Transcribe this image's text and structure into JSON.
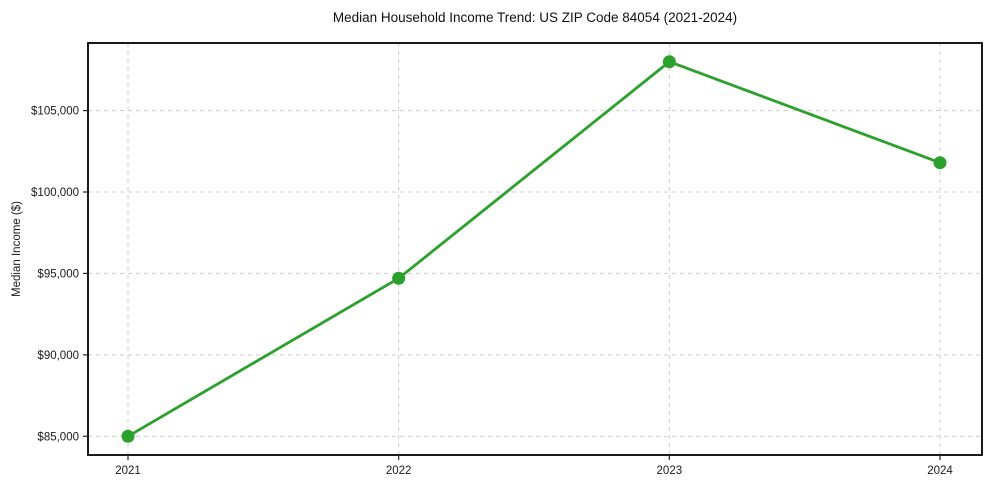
{
  "chart_data": {
    "type": "line",
    "title": "Median Household Income Trend: US ZIP Code 84054 (2021-2024)",
    "xlabel": "",
    "ylabel": "Median Income ($)",
    "categories": [
      "2021",
      "2022",
      "2023",
      "2024"
    ],
    "values": [
      85000,
      94700,
      108000,
      101800
    ],
    "ylim": [
      83850,
      109150
    ],
    "yticks": [
      {
        "value": 85000,
        "label": "$85,000"
      },
      {
        "value": 90000,
        "label": "$90,000"
      },
      {
        "value": 95000,
        "label": "$95,000"
      },
      {
        "value": 100000,
        "label": "$100,000"
      },
      {
        "value": 105000,
        "label": "$105,000"
      }
    ],
    "grid": true,
    "grid_style": "dashed",
    "legend": false,
    "marker": "circle",
    "colors": {
      "line": "#2ca02c",
      "marker": "#2ca02c",
      "grid": "#cccccc",
      "axis": "#000000",
      "tick": "#262626",
      "text": "#1a1a1a",
      "background": "#ffffff"
    }
  }
}
